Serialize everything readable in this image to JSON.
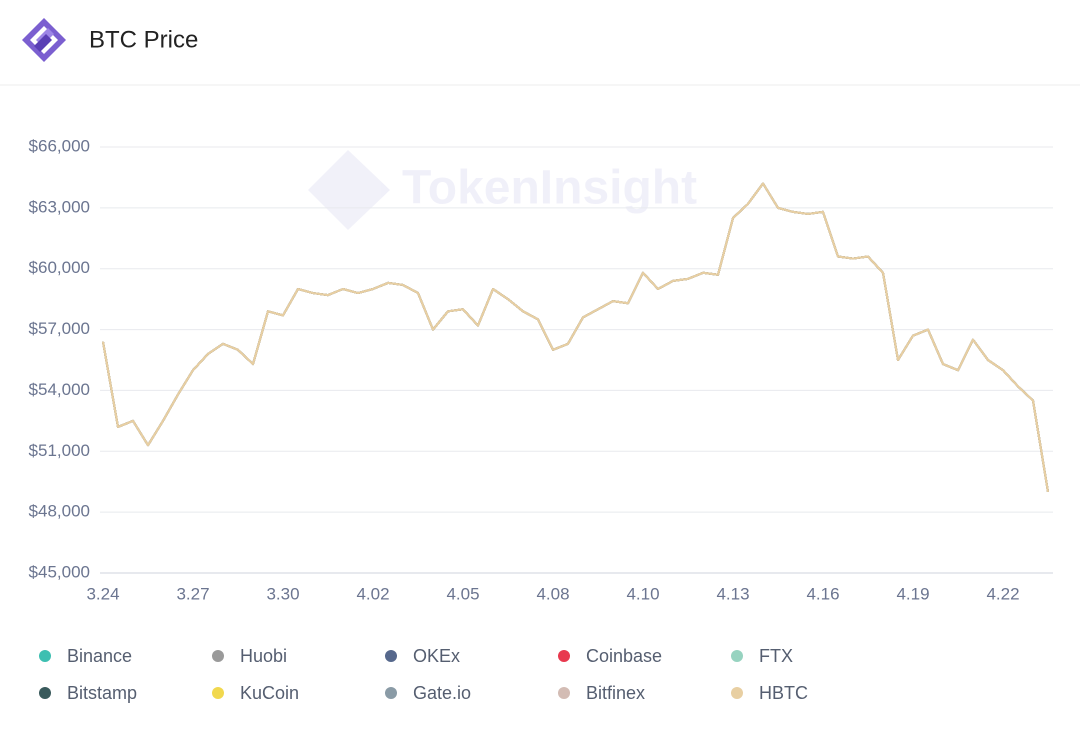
{
  "header": {
    "title": "BTC Price"
  },
  "chart_data": {
    "type": "line",
    "watermark": "TokenInsight",
    "categories": [
      "3.24",
      null,
      null,
      null,
      null,
      null,
      "3.27",
      null,
      null,
      null,
      null,
      null,
      "3.30",
      null,
      null,
      null,
      null,
      null,
      "4.02",
      null,
      null,
      null,
      null,
      null,
      "4.05",
      null,
      null,
      null,
      null,
      null,
      "4.08",
      null,
      null,
      null,
      null,
      null,
      "4.10",
      null,
      null,
      null,
      null,
      null,
      "4.13",
      null,
      null,
      null,
      null,
      null,
      "4.16",
      null,
      null,
      null,
      null,
      null,
      "4.19",
      null,
      null,
      null,
      null,
      null,
      "4.22",
      null,
      null,
      null
    ],
    "ylim": [
      45000,
      66000
    ],
    "yticks": [
      {
        "value": 45000,
        "label": "$45,000"
      },
      {
        "value": 48000,
        "label": "$48,000"
      },
      {
        "value": 51000,
        "label": "$51,000"
      },
      {
        "value": 54000,
        "label": "$54,000"
      },
      {
        "value": 57000,
        "label": "$57,000"
      },
      {
        "value": 60000,
        "label": "$60,000"
      },
      {
        "value": 63000,
        "label": "$63,000"
      },
      {
        "value": 66000,
        "label": "$66,000"
      }
    ],
    "grid": true,
    "series": [
      {
        "name": "Binance",
        "color": "#3dbfb1",
        "values": [
          56400,
          52200,
          52500,
          51300,
          52500,
          53800,
          55000,
          55800,
          56300,
          56000,
          55300,
          57900,
          57700,
          59000,
          58800,
          58700,
          59000,
          58800,
          59000,
          59300,
          59200,
          58800,
          57000,
          57900,
          58000,
          57200,
          59000,
          58500,
          57900,
          57500,
          56000,
          56300,
          57600,
          58000,
          58400,
          58300,
          59800,
          59000,
          59400,
          59500,
          59800,
          59700,
          62500,
          63200,
          64200,
          63000,
          62800,
          62700,
          62800,
          60600,
          60500,
          60600,
          59800,
          55500,
          56700,
          57000,
          55300,
          55000,
          56500,
          55500,
          55000,
          54200,
          53500,
          49000
        ]
      },
      {
        "name": "Huobi",
        "color": "#9a9a9a",
        "values": [
          56400,
          52200,
          52500,
          51300,
          52500,
          53800,
          55000,
          55800,
          56300,
          56000,
          55300,
          57900,
          57700,
          59000,
          58800,
          58700,
          59000,
          58800,
          59000,
          59300,
          59200,
          58800,
          57000,
          57900,
          58000,
          57200,
          59000,
          58500,
          57900,
          57500,
          56000,
          56300,
          57600,
          58000,
          58400,
          58300,
          59800,
          59000,
          59400,
          59500,
          59800,
          59700,
          62500,
          63200,
          64200,
          63000,
          62800,
          62700,
          62800,
          60600,
          60500,
          60600,
          59800,
          55500,
          56700,
          57000,
          55300,
          55000,
          56500,
          55500,
          55000,
          54200,
          53500,
          49000
        ]
      },
      {
        "name": "OKEx",
        "color": "#56688c",
        "values": [
          56400,
          52200,
          52500,
          51300,
          52500,
          53800,
          55000,
          55800,
          56300,
          56000,
          55300,
          57900,
          57700,
          59000,
          58800,
          58700,
          59000,
          58800,
          59000,
          59300,
          59200,
          58800,
          57000,
          57900,
          58000,
          57200,
          59000,
          58500,
          57900,
          57500,
          56000,
          56300,
          57600,
          58000,
          58400,
          58300,
          59800,
          59000,
          59400,
          59500,
          59800,
          59700,
          62500,
          63200,
          64200,
          63000,
          62800,
          62700,
          62800,
          60600,
          60500,
          60600,
          59800,
          55500,
          56700,
          57000,
          55300,
          55000,
          56500,
          55500,
          55000,
          54200,
          53500,
          49000
        ]
      },
      {
        "name": "Coinbase",
        "color": "#e8394e",
        "values": [
          56400,
          52200,
          52500,
          51300,
          52500,
          53800,
          55000,
          55800,
          56300,
          56000,
          55300,
          57900,
          57700,
          59000,
          58800,
          58700,
          59000,
          58800,
          59000,
          59300,
          59200,
          58800,
          57000,
          57900,
          58000,
          57200,
          59000,
          58500,
          57900,
          57500,
          56000,
          56300,
          57600,
          58000,
          58400,
          58300,
          59800,
          59000,
          59400,
          59500,
          59800,
          59700,
          62500,
          63200,
          64200,
          63000,
          62800,
          62700,
          62800,
          60600,
          60500,
          60600,
          59800,
          55500,
          56700,
          57000,
          55300,
          55000,
          56500,
          55500,
          55000,
          54200,
          53500,
          49000
        ]
      },
      {
        "name": "FTX",
        "color": "#97d3c0",
        "values": [
          56400,
          52200,
          52500,
          51300,
          52500,
          53800,
          55000,
          55800,
          56300,
          56000,
          55300,
          57900,
          57700,
          59000,
          58800,
          58700,
          59000,
          58800,
          59000,
          59300,
          59200,
          58800,
          57000,
          57900,
          58000,
          57200,
          59000,
          58500,
          57900,
          57500,
          56000,
          56300,
          57600,
          58000,
          58400,
          58300,
          59800,
          59000,
          59400,
          59500,
          59800,
          59700,
          62500,
          63200,
          64200,
          63000,
          62800,
          62700,
          62800,
          60600,
          60500,
          60600,
          59800,
          55500,
          56700,
          57000,
          55300,
          55000,
          56500,
          55500,
          55000,
          54200,
          53500,
          49000
        ]
      },
      {
        "name": "Bitstamp",
        "color": "#395a5c",
        "values": [
          56400,
          52200,
          52500,
          51300,
          52500,
          53800,
          55000,
          55800,
          56300,
          56000,
          55300,
          57900,
          57700,
          59000,
          58800,
          58700,
          59000,
          58800,
          59000,
          59300,
          59200,
          58800,
          57000,
          57900,
          58000,
          57200,
          59000,
          58500,
          57900,
          57500,
          56000,
          56300,
          57600,
          58000,
          58400,
          58300,
          59800,
          59000,
          59400,
          59500,
          59800,
          59700,
          62500,
          63200,
          64200,
          63000,
          62800,
          62700,
          62800,
          60600,
          60500,
          60600,
          59800,
          55500,
          56700,
          57000,
          55300,
          55000,
          56500,
          55500,
          55000,
          54200,
          53500,
          49000
        ]
      },
      {
        "name": "KuCoin",
        "color": "#f1d84e",
        "values": [
          56400,
          52200,
          52500,
          51300,
          52500,
          53800,
          55000,
          55800,
          56300,
          56000,
          55300,
          57900,
          57700,
          59000,
          58800,
          58700,
          59000,
          58800,
          59000,
          59300,
          59200,
          58800,
          57000,
          57900,
          58000,
          57200,
          59000,
          58500,
          57900,
          57500,
          56000,
          56300,
          57600,
          58000,
          58400,
          58300,
          59800,
          59000,
          59400,
          59500,
          59800,
          59700,
          62500,
          63200,
          64200,
          63000,
          62800,
          62700,
          62800,
          60600,
          60500,
          60600,
          59800,
          55500,
          56700,
          57000,
          55300,
          55000,
          56500,
          55500,
          55000,
          54200,
          53500,
          49000
        ]
      },
      {
        "name": "Gate.io",
        "color": "#8a9ba6",
        "values": [
          56400,
          52200,
          52500,
          51300,
          52500,
          53800,
          55000,
          55800,
          56300,
          56000,
          55300,
          57900,
          57700,
          59000,
          58800,
          58700,
          59000,
          58800,
          59000,
          59300,
          59200,
          58800,
          57000,
          57900,
          58000,
          57200,
          59000,
          58500,
          57900,
          57500,
          56000,
          56300,
          57600,
          58000,
          58400,
          58300,
          59800,
          59000,
          59400,
          59500,
          59800,
          59700,
          62500,
          63200,
          64200,
          63000,
          62800,
          62700,
          62800,
          60600,
          60500,
          60600,
          59800,
          55500,
          56700,
          57000,
          55300,
          55000,
          56500,
          55500,
          55000,
          54200,
          53500,
          49000
        ]
      },
      {
        "name": "Bitfinex",
        "color": "#d3bcb4",
        "values": [
          56400,
          52200,
          52500,
          51300,
          52500,
          53800,
          55000,
          55800,
          56300,
          56000,
          55300,
          57900,
          57700,
          59000,
          58800,
          58700,
          59000,
          58800,
          59000,
          59300,
          59200,
          58800,
          57000,
          57900,
          58000,
          57200,
          59000,
          58500,
          57900,
          57500,
          56000,
          56300,
          57600,
          58000,
          58400,
          58300,
          59800,
          59000,
          59400,
          59500,
          59800,
          59700,
          62500,
          63200,
          64200,
          63000,
          62800,
          62700,
          62800,
          60600,
          60500,
          60600,
          59800,
          55500,
          56700,
          57000,
          55300,
          55000,
          56500,
          55500,
          55000,
          54200,
          53500,
          49000
        ]
      },
      {
        "name": "HBTC",
        "color": "#e8cfa2",
        "values": [
          56400,
          52200,
          52500,
          51300,
          52500,
          53800,
          55000,
          55800,
          56300,
          56000,
          55300,
          57900,
          57700,
          59000,
          58800,
          58700,
          59000,
          58800,
          59000,
          59300,
          59200,
          58800,
          57000,
          57900,
          58000,
          57200,
          59000,
          58500,
          57900,
          57500,
          56000,
          56300,
          57600,
          58000,
          58400,
          58300,
          59800,
          59000,
          59400,
          59500,
          59800,
          59700,
          62500,
          63200,
          64200,
          63000,
          62800,
          62700,
          62800,
          60600,
          60500,
          60600,
          59800,
          55500,
          56700,
          57000,
          55300,
          55000,
          56500,
          55500,
          55000,
          54200,
          53500,
          49000
        ]
      }
    ]
  }
}
